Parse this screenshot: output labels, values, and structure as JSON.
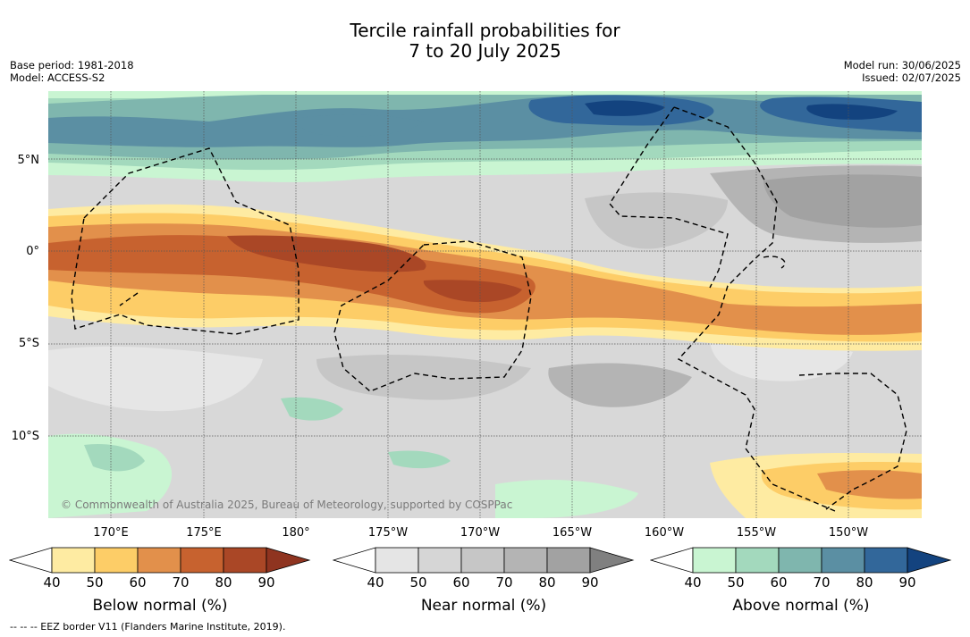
{
  "header": {
    "title_line1": "Tercile rainfall probabilities for",
    "title_line2": "7 to 20 July 2025",
    "base_period": "Base period: 1981-2018",
    "model": "Model: ACCESS-S2",
    "model_run": "Model run: 30/06/2025",
    "issued": "Issued: 02/07/2025"
  },
  "map": {
    "latitude_labels": [
      "5°N",
      "0°",
      "5°S",
      "10°S"
    ],
    "longitude_labels": [
      "170°E",
      "175°E",
      "180°",
      "175°W",
      "170°W",
      "165°W",
      "160°W",
      "155°W",
      "150°W"
    ],
    "copyright": "© Commonwealth of Australia 2025, Bureau of Meteorology, supported by COSPPac"
  },
  "colorbars": [
    {
      "title": "Below normal (%)",
      "ticks": [
        "40",
        "50",
        "60",
        "70",
        "80",
        "90"
      ],
      "colors": [
        "#ffffff",
        "#feeba2",
        "#fdcd67",
        "#e2904b",
        "#c7622f",
        "#aa4726",
        "#8f3420"
      ]
    },
    {
      "title": "Near normal (%)",
      "ticks": [
        "40",
        "50",
        "60",
        "70",
        "80",
        "90"
      ],
      "colors": [
        "#ffffff",
        "#e5e5e5",
        "#d6d6d6",
        "#c6c6c6",
        "#b4b4b4",
        "#a2a2a2",
        "#808080"
      ]
    },
    {
      "title": "Above normal (%)",
      "ticks": [
        "40",
        "50",
        "60",
        "70",
        "80",
        "90"
      ],
      "colors": [
        "#ffffff",
        "#c9f5d2",
        "#a3d9bd",
        "#7fb6ae",
        "#5b8fa3",
        "#32679a",
        "#13437f"
      ]
    }
  ],
  "footer": {
    "eez_legend": "--  --  -- EEZ border V11 (Flanders Marine Institute, 2019)."
  }
}
